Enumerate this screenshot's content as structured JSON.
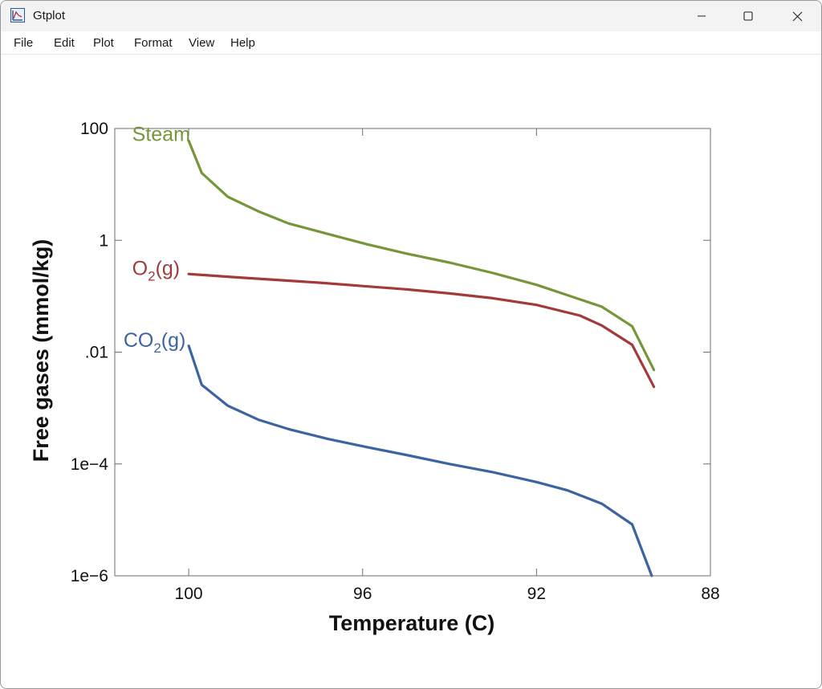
{
  "window": {
    "title": "Gtplot",
    "controls": [
      "minimize",
      "maximize",
      "close"
    ]
  },
  "menu": {
    "items": [
      "File",
      "Edit",
      "Plot",
      "Format",
      "View",
      "Help"
    ]
  },
  "colors": {
    "steam": "#76963a",
    "o2": "#a33a3a",
    "co2": "#3d64a0",
    "axis": "#6e6e6e"
  },
  "chart_data": {
    "type": "line",
    "xlabel": "Temperature (C)",
    "ylabel": "Free gases (mmol/kg)",
    "xlim": [
      101.7,
      88
    ],
    "x_reversed": true,
    "y_scale": "log",
    "ylim": [
      1e-06,
      100
    ],
    "x_ticks": [
      100,
      96,
      92,
      88
    ],
    "x_tick_labels": [
      "100",
      "96",
      "92",
      "88"
    ],
    "y_ticks": [
      1e-06,
      0.0001,
      0.01,
      1,
      100
    ],
    "y_tick_labels": [
      "1e−6",
      "1e−4",
      ".01",
      "1",
      "100"
    ],
    "series": [
      {
        "name": "Steam",
        "label_main": "Steam",
        "label_sub": "",
        "label_suffix": "",
        "label_anchor": [
          101.3,
          60
        ],
        "color_key": "steam",
        "points": [
          [
            100,
            60
          ],
          [
            99.7,
            16
          ],
          [
            99.1,
            6
          ],
          [
            98.4,
            3.3
          ],
          [
            97.7,
            2
          ],
          [
            96.8,
            1.3
          ],
          [
            95.9,
            0.85
          ],
          [
            95.0,
            0.58
          ],
          [
            94.0,
            0.4
          ],
          [
            93.0,
            0.26
          ],
          [
            92.0,
            0.16
          ],
          [
            91.3,
            0.105
          ],
          [
            90.5,
            0.065
          ],
          [
            89.8,
            0.029
          ],
          [
            89.3,
            0.0048
          ]
        ]
      },
      {
        "name": "O2(g)",
        "label_main": "O",
        "label_sub": "2",
        "label_suffix": "(g)",
        "label_anchor": [
          101.3,
          0.24
        ],
        "color_key": "o2",
        "points": [
          [
            100,
            0.25
          ],
          [
            99.0,
            0.22
          ],
          [
            98.0,
            0.196
          ],
          [
            97.0,
            0.175
          ],
          [
            96.0,
            0.152
          ],
          [
            95.0,
            0.133
          ],
          [
            94.0,
            0.112
          ],
          [
            93.0,
            0.092
          ],
          [
            92.0,
            0.07
          ],
          [
            91.0,
            0.045
          ],
          [
            90.5,
            0.03
          ],
          [
            89.8,
            0.0135
          ],
          [
            89.3,
            0.0024
          ]
        ]
      },
      {
        "name": "CO2(g)",
        "label_main": "CO",
        "label_sub": "2",
        "label_suffix": "(g)",
        "label_anchor": [
          101.5,
          0.0125
        ],
        "color_key": "co2",
        "points": [
          [
            100,
            0.013
          ],
          [
            99.7,
            0.0026
          ],
          [
            99.1,
            0.0011
          ],
          [
            98.4,
            0.00062
          ],
          [
            97.7,
            0.00042
          ],
          [
            96.8,
            0.00028
          ],
          [
            95.9,
            0.0002
          ],
          [
            95.0,
            0.000145
          ],
          [
            94.0,
            0.0001
          ],
          [
            93.0,
            7.1e-05
          ],
          [
            92.0,
            4.75e-05
          ],
          [
            91.3,
            3.4e-05
          ],
          [
            90.5,
            1.95e-05
          ],
          [
            89.8,
            8.3e-06
          ],
          [
            89.35,
            1e-06
          ]
        ]
      }
    ]
  }
}
